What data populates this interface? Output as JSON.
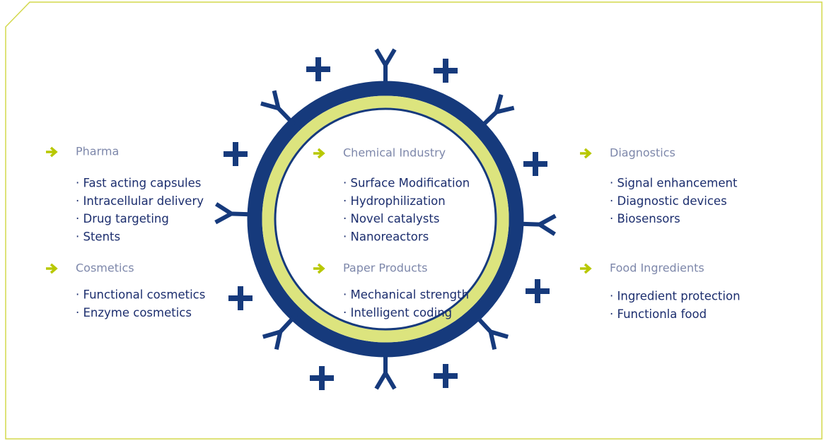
{
  "sections": [
    {
      "heading": "Pharma",
      "items": [
        "· Fast acting capsules",
        "· Intracellular delivery",
        "· Drug targeting",
        "· Stents"
      ]
    },
    {
      "heading": "Cosmetics",
      "items": [
        "· Functional cosmetics",
        "· Enzyme cosmetics"
      ]
    },
    {
      "heading": "Chemical Industry",
      "items": [
        "· Surface Modification",
        "· Hydrophilization",
        "· Novel catalysts",
        "· Nanoreactors"
      ]
    },
    {
      "heading": "Paper Products",
      "items": [
        "· Mechanical strength",
        "· Intelligent coding"
      ]
    },
    {
      "heading": "Diagnostics",
      "items": [
        "· Signal enhancement",
        "· Diagnostic devices",
        "· Biosensors"
      ]
    },
    {
      "heading": "Food Ingredients",
      "items": [
        "· Ingredient protection",
        "· Functionla food"
      ]
    }
  ]
}
